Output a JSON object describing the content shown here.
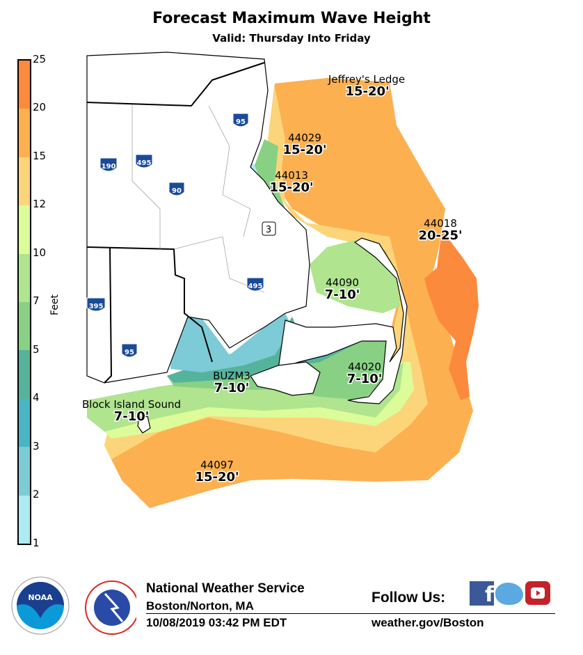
{
  "title": "Forecast Maximum Wave Height",
  "subtitle": "Valid: Thursday Into Friday",
  "legend": {
    "label": "Feet",
    "ticks": [
      "1",
      "2",
      "3",
      "4",
      "5",
      "7",
      "10",
      "12",
      "15",
      "20",
      "25"
    ],
    "colors": [
      "#aeeaf2",
      "#7ccbd6",
      "#4ab5c4",
      "#55b39c",
      "#88d184",
      "#b0e48f",
      "#dcfc9a",
      "#fcd57a",
      "#fcb050",
      "#fc8a3c"
    ]
  },
  "zones": [
    {
      "name": "Jeffrey's Ledge",
      "range": "15-20'"
    },
    {
      "name": "44029",
      "range": "15-20'"
    },
    {
      "name": "44013",
      "range": "15-20'"
    },
    {
      "name": "44018",
      "range": "20-25'"
    },
    {
      "name": "44090",
      "range": "7-10'"
    },
    {
      "name": "44020",
      "range": "7-10'"
    },
    {
      "name": "BUZM3",
      "range": "7-10'"
    },
    {
      "name": "Block Island Sound",
      "range": "7-10'"
    },
    {
      "name": "44097",
      "range": "15-20'"
    }
  ],
  "highways": [
    "95",
    "190",
    "495",
    "90",
    "395",
    "95",
    "495",
    "3"
  ],
  "footer": {
    "org": "National Weather Service",
    "office": "Boston/Norton, MA",
    "timestamp": "10/08/2019 03:42 PM EDT",
    "follow": "Follow Us:",
    "url": "weather.gov/Boston",
    "noaa_logo": "NOAA",
    "nws_logo": "NATIONAL WEATHER SERVICE"
  }
}
